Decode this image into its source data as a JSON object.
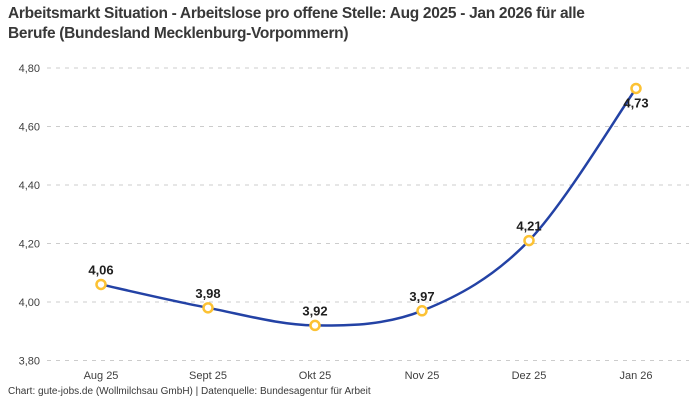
{
  "title_lines": [
    "Arbeitsmarkt Situation - Arbeitslose pro offene Stelle: Aug 2025 - Jan 2026 für alle",
    "Berufe (Bundesland Mecklenburg-Vorpommern)"
  ],
  "footer": "Chart: gute-jobs.de (Wollmilchsau GmbH) | Datenquelle: Bundesagentur für Arbeit",
  "colors": {
    "line": "#2342a5",
    "marker_ring": "#fcc234",
    "marker_fill": "#ffffff",
    "grid": "#cccccc",
    "title_text": "#383838",
    "axis_text": "#3f3f3f",
    "label_text": "#1f1f1f"
  },
  "chart_data": {
    "type": "line",
    "title": "Arbeitsmarkt Situation - Arbeitslose pro offene Stelle: Aug 2025 - Jan 2026 für alle Berufe (Bundesland Mecklenburg-Vorpommern)",
    "xlabel": "",
    "ylabel": "",
    "ylim": [
      3.8,
      4.8
    ],
    "grid": "horizontal-dashed",
    "legend": "none",
    "categories": [
      "Aug 25",
      "Sept 25",
      "Okt 25",
      "Nov 25",
      "Dez 25",
      "Jan 26"
    ],
    "values": [
      4.06,
      3.98,
      3.92,
      3.97,
      4.21,
      4.73
    ],
    "y_ticks": [
      {
        "value": 4.8,
        "label": "4,80"
      },
      {
        "value": 4.6,
        "label": "4,60"
      },
      {
        "value": 4.4,
        "label": "4,40"
      },
      {
        "value": 4.2,
        "label": "4,20"
      },
      {
        "value": 4.0,
        "label": "4,00"
      },
      {
        "value": 3.8,
        "label": "3,80"
      }
    ],
    "points": [
      {
        "category": "Aug 25",
        "value": 4.06,
        "label": "4,06",
        "label_position": "above"
      },
      {
        "category": "Sept 25",
        "value": 3.98,
        "label": "3,98",
        "label_position": "above"
      },
      {
        "category": "Okt 25",
        "value": 3.92,
        "label": "3,92",
        "label_position": "above"
      },
      {
        "category": "Nov 25",
        "value": 3.97,
        "label": "3,97",
        "label_position": "above"
      },
      {
        "category": "Dez 25",
        "value": 4.21,
        "label": "4,21",
        "label_position": "above"
      },
      {
        "category": "Jan 26",
        "value": 4.73,
        "label": "4,73",
        "label_position": "below"
      }
    ]
  }
}
